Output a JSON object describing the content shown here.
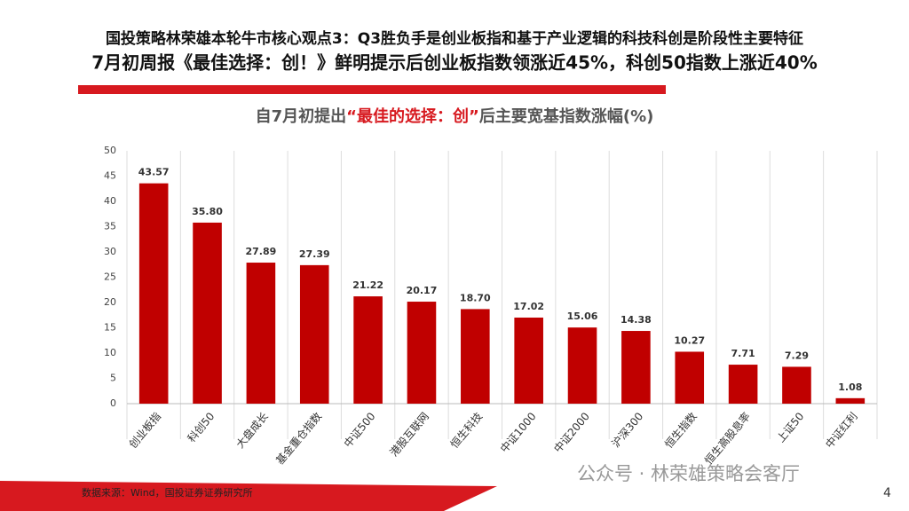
{
  "header": {
    "line1": "国投策略林荣雄本轮牛市核心观点3：Q3胜负手是创业板指和基于产业逻辑的科技科创是阶段性主要特征",
    "line2": "7月初周报《最佳选择：创！》鲜明提示后创业板指数领涨近45%，科创50指数上涨近40%"
  },
  "chart_data": {
    "type": "bar",
    "title": [
      "自7月初提出",
      "“最佳的选择：创”",
      "后主要宽基指数涨幅(%)"
    ],
    "categories": [
      "创业板指",
      "科创50",
      "大盘成长",
      "基金重仓指数",
      "中证500",
      "港股互联网",
      "恒生科技",
      "中证1000",
      "中证2000",
      "沪深300",
      "恒生指数",
      "恒生高股息率",
      "上证50",
      "中证红利"
    ],
    "values": [
      43.57,
      35.8,
      27.89,
      27.39,
      21.22,
      20.17,
      18.7,
      17.02,
      15.06,
      14.38,
      10.27,
      7.71,
      7.29,
      1.08
    ],
    "value_labels": [
      "43.57",
      "35.80",
      "27.89",
      "27.39",
      "21.22",
      "20.17",
      "18.70",
      "17.02",
      "15.06",
      "14.38",
      "10.27",
      "7.71",
      "7.29",
      "1.08"
    ],
    "color": "#c00000",
    "ylim": [
      0,
      50
    ],
    "yticks": [
      0,
      5,
      10,
      15,
      20,
      25,
      30,
      35,
      40,
      45,
      50
    ],
    "category_separators": true
  },
  "footer": {
    "source": "数据来源：Wind，国投证券证券研究所",
    "watermark": "公众号 · 林荣雄策略会客厅",
    "page_number": "4"
  }
}
